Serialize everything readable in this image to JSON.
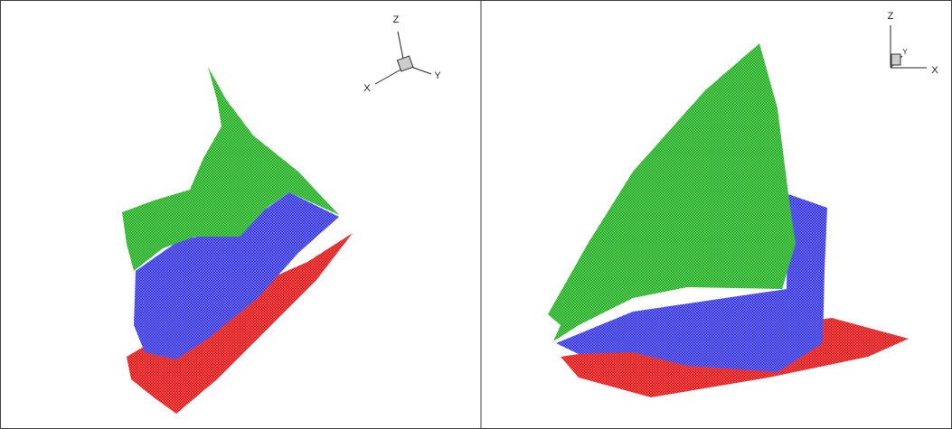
{
  "panels": [
    {
      "axes": {
        "z": "Z",
        "x": "X",
        "y": "Y"
      }
    },
    {
      "axes": {
        "z": "Z",
        "y": "Y",
        "x": "X"
      }
    }
  ]
}
